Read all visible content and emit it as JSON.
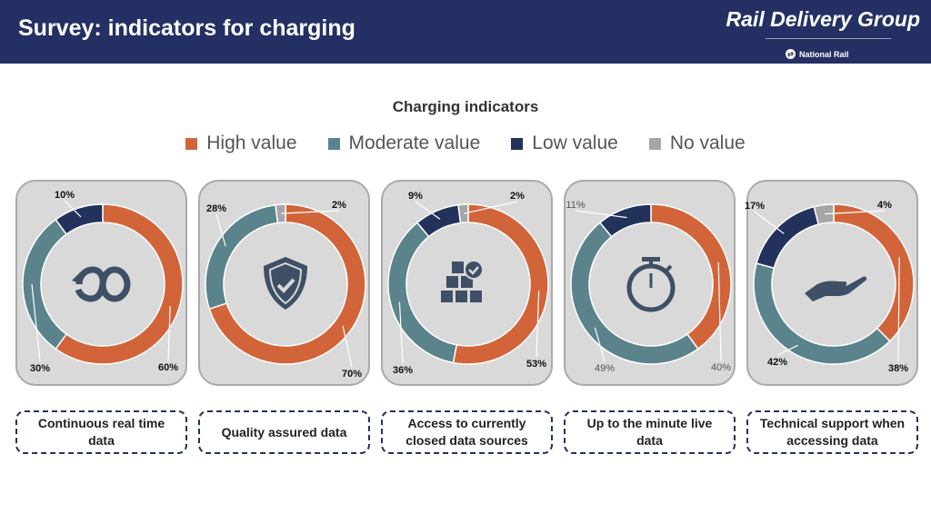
{
  "header": {
    "title": "Survey: indicators for charging",
    "brand": "Rail Delivery Group",
    "sub_brand": "National Rail"
  },
  "colors": {
    "high": "#d2643a",
    "moderate": "#5a838c",
    "low": "#22325c",
    "none": "#a6a6a6",
    "icon": "#3e4f66"
  },
  "chart_data": {
    "type": "donut",
    "title": "Charging indicators",
    "legend": [
      "High value",
      "Moderate value",
      "Low value",
      "No value"
    ],
    "legend_position": "top",
    "charts": [
      {
        "label": "Continuous real time data",
        "icon": "infinity-icon",
        "values": [
          60,
          30,
          10,
          0
        ],
        "labels": [
          "60%",
          "30%",
          "10%",
          ""
        ]
      },
      {
        "label": "Quality assured data",
        "icon": "shield-check-icon",
        "values": [
          70,
          28,
          0,
          2
        ],
        "labels": [
          "70%",
          "28%",
          "",
          "2%"
        ]
      },
      {
        "label": "Access to currently closed data sources",
        "icon": "boxes-check-icon",
        "values": [
          53,
          36,
          9,
          2
        ],
        "labels": [
          "53%",
          "36%",
          "9%",
          "2%"
        ]
      },
      {
        "label": "Up to the minute live data",
        "icon": "stopwatch-icon",
        "values": [
          40,
          49,
          11,
          0
        ],
        "labels": [
          "40%",
          "49%",
          "11%",
          ""
        ]
      },
      {
        "label": "Technical support when accessing data",
        "icon": "hand-icon",
        "values": [
          38,
          42,
          17,
          4
        ],
        "labels": [
          "38%",
          "42%",
          "17%",
          "4%"
        ]
      }
    ]
  }
}
